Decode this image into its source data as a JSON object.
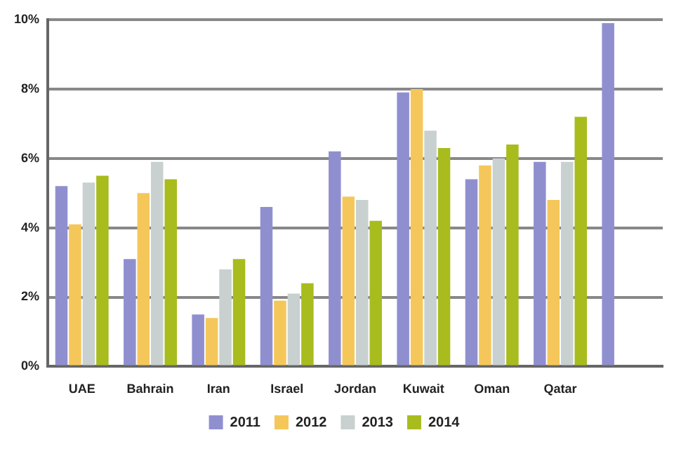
{
  "chart_data": {
    "type": "bar",
    "categories": [
      "UAE",
      "Bahrain",
      "Iran",
      "Israel",
      "Jordan",
      "Kuwait",
      "Oman",
      "Qatar",
      null
    ],
    "series": [
      {
        "name": "2011",
        "color": "#8f8fd0",
        "values": [
          5.2,
          3.1,
          1.5,
          4.6,
          6.2,
          7.9,
          5.4,
          5.9,
          9.9
        ]
      },
      {
        "name": "2012",
        "color": "#f5c75a",
        "values": [
          4.1,
          5.0,
          1.4,
          1.9,
          4.9,
          8.0,
          5.8,
          4.8,
          null
        ]
      },
      {
        "name": "2013",
        "color": "#c8d0d0",
        "values": [
          5.3,
          5.9,
          2.8,
          2.1,
          4.8,
          6.8,
          6.0,
          5.9,
          null
        ]
      },
      {
        "name": "2014",
        "color": "#a8bc1e",
        "values": [
          5.5,
          5.4,
          3.1,
          2.4,
          4.2,
          6.3,
          6.4,
          7.2,
          null
        ]
      }
    ],
    "ylim": [
      0,
      10
    ],
    "yticks": [
      {
        "value": 0,
        "label": "0%"
      },
      {
        "value": 2,
        "label": "2%"
      },
      {
        "value": 4,
        "label": "4%"
      },
      {
        "value": 6,
        "label": "6%"
      },
      {
        "value": 8,
        "label": "8%"
      },
      {
        "value": 10,
        "label": "10%"
      }
    ],
    "grid": "y",
    "legend": "bottom"
  }
}
